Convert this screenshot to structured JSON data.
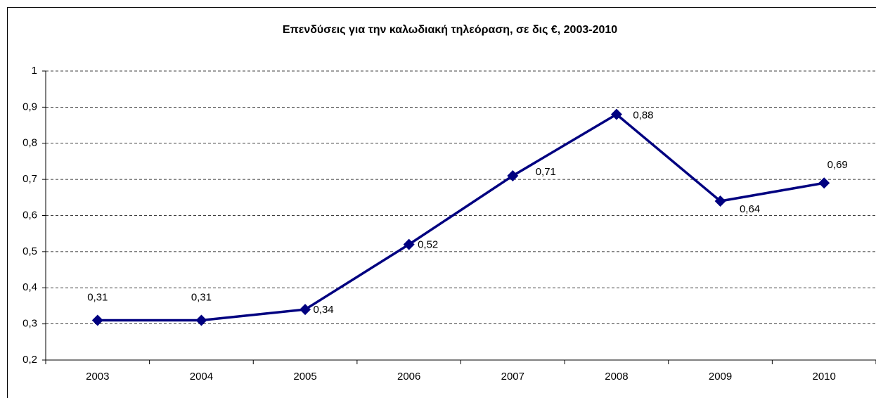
{
  "chart_data": {
    "type": "line",
    "title": "Επενδύσεις για την καλωδιακή τηλεόραση, σε δις €, 2003-2010",
    "categories": [
      "2003",
      "2004",
      "2005",
      "2006",
      "2007",
      "2008",
      "2009",
      "2010"
    ],
    "series": [
      {
        "name": "Επενδύσεις",
        "color": "#000080",
        "values": [
          0.31,
          0.31,
          0.34,
          0.52,
          0.71,
          0.88,
          0.64,
          0.69
        ],
        "value_labels": [
          "0,31",
          "0,31",
          "0,34",
          "0,52",
          "0,71",
          "0,88",
          "0,64",
          "0,69"
        ]
      }
    ],
    "ylim": [
      0.2,
      1
    ],
    "yticks": [
      {
        "value": 0.2,
        "label": "0,2"
      },
      {
        "value": 0.3,
        "label": "0,3"
      },
      {
        "value": 0.4,
        "label": "0,4"
      },
      {
        "value": 0.5,
        "label": "0,5"
      },
      {
        "value": 0.6,
        "label": "0,6"
      },
      {
        "value": 0.7,
        "label": "0,7"
      },
      {
        "value": 0.8,
        "label": "0,8"
      },
      {
        "value": 0.9,
        "label": "0,9"
      },
      {
        "value": 1,
        "label": "1"
      }
    ],
    "grid": true
  }
}
